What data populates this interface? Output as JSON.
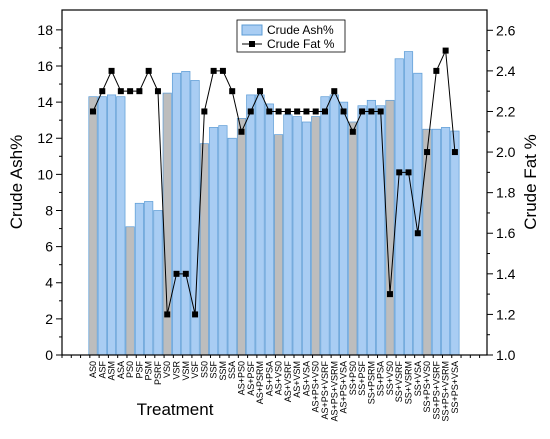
{
  "chart_data": {
    "type": "bar-line",
    "x_label": "Treatment",
    "y_label": "Crude Ash%",
    "y2_label": "Crude Fat %",
    "categories": [
      "AS0",
      "ASF",
      "ASM",
      "ASA",
      "PS0",
      "PSF",
      "PSM",
      "PSRF",
      "VS0",
      "VSR",
      "VSM",
      "VSF",
      "SS0",
      "SSF",
      "SSM",
      "SSA",
      "AS+PS0",
      "AS+PSF",
      "AS+PSRM",
      "AS+PSA",
      "AS+VS0",
      "AS+VSRF",
      "AS+VSM",
      "AS+VSA",
      "AS+PS+VS0",
      "AS+PS+VSRF",
      "AS+PS+VSRM",
      "AS+PS+VSA",
      "SS+PS0",
      "SS+PSF",
      "SS+PSRM",
      "SS+PSA",
      "SS+VS0",
      "SS+VSRF",
      "SS+VSRM",
      "SS+VSA",
      "SS+PS+VS0",
      "SS+PS+VSRF",
      "SS+PS+VSRM",
      "SS+PS+VSA"
    ],
    "series": [
      {
        "name": "Crude Ash%",
        "type": "bar",
        "color": "#a9cdf3",
        "control_color": "#bdbdbd",
        "colors": [
          "#bdbdbd",
          "#a9cdf3",
          "#a9cdf3",
          "#a9cdf3",
          "#bdbdbd",
          "#a9cdf3",
          "#a9cdf3",
          "#a9cdf3",
          "#bdbdbd",
          "#a9cdf3",
          "#a9cdf3",
          "#a9cdf3",
          "#bdbdbd",
          "#a9cdf3",
          "#a9cdf3",
          "#a9cdf3",
          "#bdbdbd",
          "#a9cdf3",
          "#a9cdf3",
          "#a9cdf3",
          "#bdbdbd",
          "#a9cdf3",
          "#a9cdf3",
          "#a9cdf3",
          "#bdbdbd",
          "#a9cdf3",
          "#a9cdf3",
          "#a9cdf3",
          "#bdbdbd",
          "#a9cdf3",
          "#a9cdf3",
          "#a9cdf3",
          "#bdbdbd",
          "#a9cdf3",
          "#a9cdf3",
          "#a9cdf3",
          "#bdbdbd",
          "#a9cdf3",
          "#a9cdf3",
          "#a9cdf3"
        ],
        "values": [
          14.3,
          14.3,
          14.4,
          14.3,
          7.1,
          8.4,
          8.5,
          8.0,
          14.5,
          15.6,
          15.7,
          15.2,
          11.7,
          12.6,
          12.7,
          12.0,
          13.1,
          14.4,
          14.4,
          13.9,
          12.2,
          13.3,
          13.2,
          12.9,
          13.2,
          14.3,
          14.4,
          14.0,
          12.9,
          13.8,
          14.1,
          13.8,
          14.1,
          16.4,
          16.8,
          15.6,
          12.5,
          12.5,
          12.6,
          12.4
        ]
      },
      {
        "name": "Crude Fat %",
        "type": "line",
        "axis": "y2",
        "color": "#000000",
        "values": [
          2.2,
          2.3,
          2.4,
          2.3,
          2.3,
          2.3,
          2.4,
          2.3,
          1.2,
          1.4,
          1.4,
          1.2,
          2.2,
          2.4,
          2.4,
          2.3,
          2.1,
          2.2,
          2.3,
          2.2,
          2.2,
          2.2,
          2.2,
          2.2,
          2.2,
          2.2,
          2.3,
          2.2,
          2.1,
          2.2,
          2.2,
          2.2,
          1.3,
          1.9,
          1.9,
          1.6,
          2.0,
          2.4,
          2.5,
          2.0
        ]
      }
    ],
    "ylim": [
      0,
      19.1
    ],
    "yticks": [
      0,
      2,
      4,
      6,
      8,
      10,
      12,
      14,
      16,
      18
    ],
    "y2lim": [
      1.0,
      2.7
    ],
    "y2ticks": [
      {
        "value": 1.0,
        "label": "1.0"
      },
      1.2,
      1.4,
      1.6,
      1.8,
      {
        "value": 2.0,
        "label": "2.0"
      },
      2.2,
      2.4,
      2.6
    ],
    "legend": "top"
  }
}
